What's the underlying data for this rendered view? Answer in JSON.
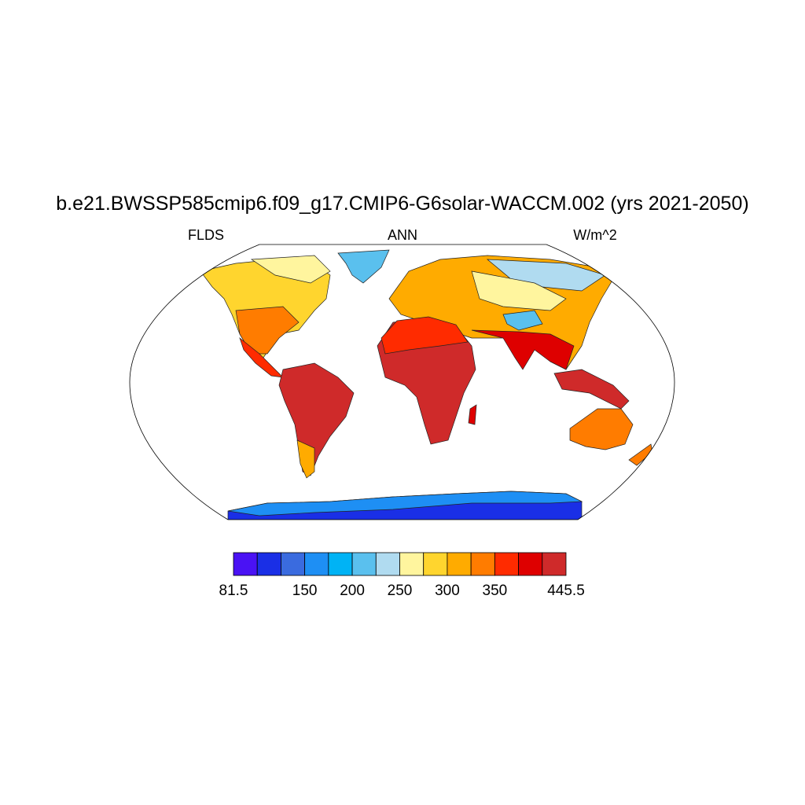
{
  "header": {
    "title": "b.e21.BWSSP585cmip6.f09_g17.CMIP6-G6solar-WACCM.002 (yrs 2021-2050)",
    "left": "FLDS",
    "center": "ANN",
    "right": "W/m^2"
  },
  "colorbar": {
    "colors": [
      "#4a12f4",
      "#1a2fe6",
      "#3a6bdf",
      "#1e8ff4",
      "#00b3f5",
      "#5ac0ee",
      "#b0dbf0",
      "#fff59e",
      "#ffd52e",
      "#ffab00",
      "#ff7c00",
      "#ff2b00",
      "#de0000",
      "#cf2a2a"
    ],
    "levels": [
      81.5,
      null,
      null,
      150,
      null,
      200,
      null,
      250,
      null,
      300,
      null,
      350,
      null,
      null,
      445.5
    ]
  }
}
